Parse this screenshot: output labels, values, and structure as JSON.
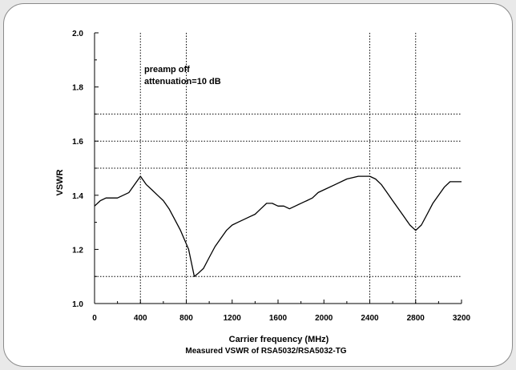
{
  "chart_data": {
    "type": "line",
    "xlabel": "Carrier frequency (MHz)",
    "ylabel": "VSWR",
    "caption": "Measured VSWR of RSA5032/RSA5032-TG",
    "annotation_lines": [
      "preamp off",
      "attenuation=10 dB"
    ],
    "xlim": [
      0,
      3200
    ],
    "ylim": [
      1.0,
      2.0
    ],
    "x_ticks": [
      0,
      400,
      800,
      1200,
      1600,
      2000,
      2400,
      2800,
      3200
    ],
    "x_tick_labels": [
      "0",
      "400",
      "800",
      "1200",
      "1600",
      "2000",
      "2400",
      "2800",
      "3200"
    ],
    "y_ticks": [
      1.0,
      1.2,
      1.4,
      1.6,
      1.8,
      2.0
    ],
    "y_tick_labels": [
      "1.0",
      "1.2",
      "1.4",
      "1.6",
      "1.8",
      "2.0"
    ],
    "ref_lines_y": [
      1.1,
      1.5,
      1.6,
      1.7
    ],
    "ref_lines_x": [
      400,
      800,
      2400,
      2800
    ],
    "grid": false,
    "series": [
      {
        "x": [
          0,
          50,
          100,
          150,
          200,
          250,
          300,
          350,
          400,
          450,
          500,
          550,
          600,
          650,
          700,
          750,
          790,
          820,
          850,
          870,
          900,
          950,
          1000,
          1050,
          1100,
          1150,
          1200,
          1250,
          1300,
          1350,
          1400,
          1450,
          1500,
          1550,
          1600,
          1650,
          1700,
          1750,
          1800,
          1850,
          1900,
          1950,
          2000,
          2100,
          2200,
          2300,
          2400,
          2450,
          2500,
          2550,
          2600,
          2650,
          2700,
          2750,
          2800,
          2850,
          2900,
          2950,
          3000,
          3050,
          3100,
          3150,
          3200
        ],
        "values": [
          1.36,
          1.38,
          1.39,
          1.39,
          1.39,
          1.4,
          1.41,
          1.44,
          1.47,
          1.44,
          1.42,
          1.4,
          1.38,
          1.35,
          1.31,
          1.27,
          1.23,
          1.2,
          1.14,
          1.1,
          1.11,
          1.13,
          1.17,
          1.21,
          1.24,
          1.27,
          1.29,
          1.3,
          1.31,
          1.32,
          1.33,
          1.35,
          1.37,
          1.37,
          1.36,
          1.36,
          1.35,
          1.36,
          1.37,
          1.38,
          1.39,
          1.41,
          1.42,
          1.44,
          1.46,
          1.47,
          1.47,
          1.46,
          1.44,
          1.41,
          1.38,
          1.35,
          1.32,
          1.29,
          1.27,
          1.29,
          1.33,
          1.37,
          1.4,
          1.43,
          1.45,
          1.45,
          1.45
        ]
      }
    ]
  }
}
